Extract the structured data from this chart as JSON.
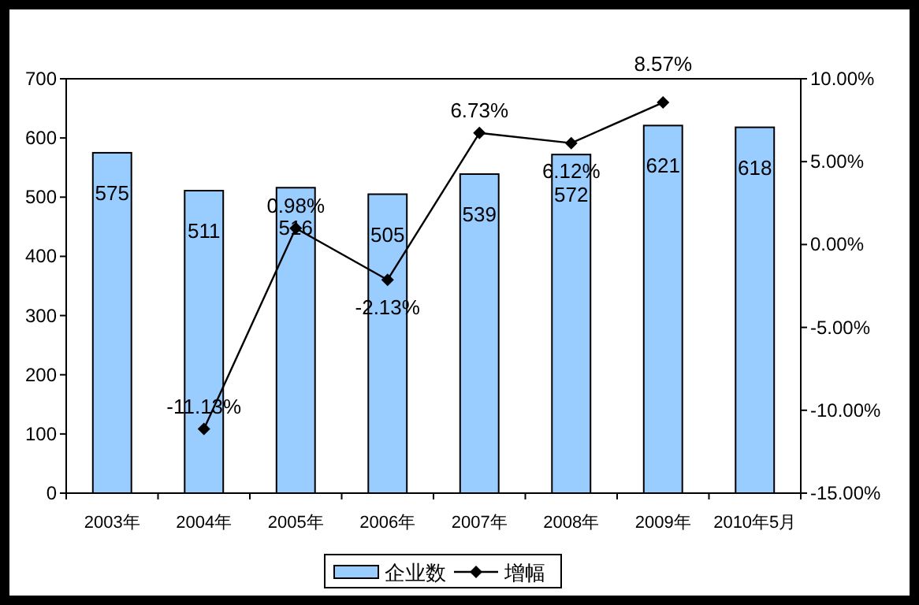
{
  "chart_data": {
    "type": "bar",
    "categories": [
      "2003年",
      "2004年",
      "2005年",
      "2006年",
      "2007年",
      "2008年",
      "2009年",
      "2010年5月"
    ],
    "series": [
      {
        "name": "企业数",
        "color": "#99ccff",
        "values": [
          575,
          511,
          516,
          505,
          539,
          572,
          621,
          618
        ],
        "value_labels": [
          "575",
          "511",
          "516",
          "505",
          "539",
          "572",
          "621",
          "618"
        ]
      },
      {
        "name": "增幅",
        "type": "line",
        "axis": "y2",
        "color": "#000000",
        "marker": "diamond",
        "line_style": "solid",
        "values": [
          null,
          -11.13,
          0.98,
          -2.13,
          6.73,
          6.12,
          8.57,
          null
        ],
        "value_labels": [
          null,
          "-11.13%",
          "0.98%",
          "-2.13%",
          "6.73%",
          "6.12%",
          "8.57%",
          null
        ]
      }
    ],
    "ylim": [
      0,
      700
    ],
    "yticks": [
      0,
      100,
      200,
      300,
      400,
      500,
      600,
      700
    ],
    "y2lim": [
      -15,
      10
    ],
    "y2ticks": [
      {
        "value": -15,
        "label": "-15.00%"
      },
      {
        "value": -10,
        "label": "-10.00%"
      },
      {
        "value": -5,
        "label": "-5.00%"
      },
      {
        "value": 0,
        "label": "0.00%"
      },
      {
        "value": 5,
        "label": "5.00%"
      },
      {
        "value": 10,
        "label": "10.00%"
      }
    ],
    "grid": false,
    "legend": "bottom"
  }
}
